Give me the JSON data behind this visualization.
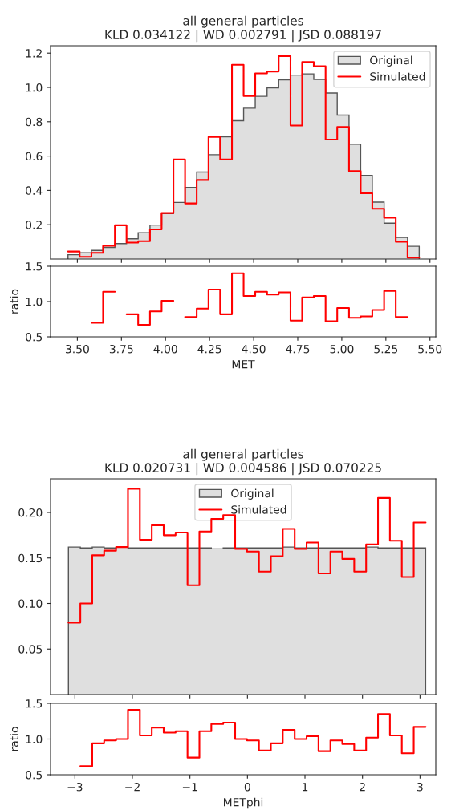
{
  "chart_data": [
    {
      "type": "histogram",
      "title": "all general particles\nKLD 0.034122 | WD 0.002791 | JSD 0.088197",
      "bins": [
        3.447,
        3.513,
        3.58,
        3.646,
        3.713,
        3.779,
        3.845,
        3.912,
        3.978,
        4.045,
        4.111,
        4.177,
        4.244,
        4.31,
        4.377,
        4.443,
        4.509,
        4.576,
        4.642,
        4.709,
        4.775,
        4.841,
        4.908,
        4.974,
        5.041,
        5.107,
        5.173,
        5.24,
        5.306,
        5.373,
        5.439
      ],
      "series": [
        {
          "name": "Original",
          "type": "histogram",
          "color": "#dfdfdf",
          "values": [
            0.025,
            0.036,
            0.05,
            0.068,
            0.09,
            0.118,
            0.153,
            0.198,
            0.265,
            0.33,
            0.417,
            0.507,
            0.608,
            0.712,
            0.806,
            0.879,
            0.948,
            0.997,
            1.044,
            1.072,
            1.079,
            1.046,
            0.967,
            0.839,
            0.669,
            0.487,
            0.332,
            0.209,
            0.126,
            0.074
          ]
        },
        {
          "name": "Simulated",
          "type": "step",
          "color": "#ff0000",
          "x": [
            3.447,
            3.513,
            3.58,
            3.646,
            3.713,
            3.779,
            3.845,
            3.912,
            3.978,
            4.045,
            4.111,
            4.177,
            4.244,
            4.31,
            4.377,
            4.443,
            4.509,
            4.576,
            4.642,
            4.709,
            4.775,
            4.841,
            4.908,
            4.974,
            5.041,
            5.107,
            5.173,
            5.24,
            5.306,
            5.373,
            5.439
          ],
          "values": [
            0.044,
            0.013,
            0.036,
            0.077,
            0.197,
            0.096,
            0.104,
            0.173,
            0.268,
            0.58,
            0.324,
            0.461,
            0.712,
            0.581,
            1.132,
            0.95,
            1.082,
            1.093,
            1.183,
            0.778,
            1.148,
            1.124,
            0.696,
            0.77,
            0.513,
            0.383,
            0.293,
            0.241,
            0.101,
            0.008,
            0.008
          ]
        }
      ],
      "xlim": [
        3.348,
        5.533
      ],
      "xticks": [
        3.5,
        3.75,
        4.0,
        4.25,
        4.5,
        4.75,
        5.0,
        5.25,
        5.5
      ],
      "ylim": [
        0,
        1.243
      ],
      "yticks": [
        0.2,
        0.4,
        0.6,
        0.8,
        {
          "value": 1,
          "label": "1.0"
        },
        1.2
      ],
      "tick_labels": "y",
      "legend": "top right"
    },
    {
      "type": "step",
      "xlabel": "MET",
      "ylabel": "ratio",
      "series": [
        {
          "type": "step",
          "color": "#ff0000",
          "x": [
            3.58,
            3.646,
            3.713,
            3.779,
            3.845,
            3.912,
            3.978,
            4.045,
            4.111,
            4.177,
            4.244,
            4.31,
            4.377,
            4.443,
            4.509,
            4.576,
            4.642,
            4.709,
            4.775,
            4.841,
            4.908,
            4.974,
            5.041,
            5.107,
            5.173,
            5.24,
            5.306,
            5.373
          ],
          "values": [
            0.7,
            1.14,
            null,
            0.82,
            0.67,
            0.86,
            1.01,
            null,
            0.78,
            0.9,
            1.17,
            0.82,
            1.4,
            1.08,
            1.14,
            1.1,
            1.13,
            0.73,
            1.06,
            1.08,
            0.72,
            0.91,
            0.77,
            0.79,
            0.88,
            1.15,
            0.78,
            0.78
          ]
        }
      ],
      "xlim": [
        3.348,
        5.533
      ],
      "xticks": [
        {
          "value": 3.5,
          "label": "3.50"
        },
        {
          "value": 3.75,
          "label": "3.75"
        },
        {
          "value": 4.0,
          "label": "4.00"
        },
        {
          "value": 4.25,
          "label": "4.25"
        },
        {
          "value": 4.5,
          "label": "4.50"
        },
        {
          "value": 4.75,
          "label": "4.75"
        },
        {
          "value": 5.0,
          "label": "5.00"
        },
        {
          "value": 5.25,
          "label": "5.25"
        },
        {
          "value": 5.5,
          "label": "5.50"
        }
      ],
      "ylim": [
        0.5,
        1.5
      ],
      "yticks": [
        0.5,
        {
          "value": 1,
          "label": "1.0"
        },
        1.5
      ]
    },
    {
      "type": "histogram",
      "title": "all general particles\nKLD 0.020731 | WD 0.004586 | JSD 0.070225",
      "bins": [
        -3.112,
        -2.905,
        -2.698,
        -2.491,
        -2.284,
        -2.077,
        -1.87,
        -1.663,
        -1.456,
        -1.249,
        -1.042,
        -0.835,
        -0.628,
        -0.421,
        -0.214,
        -0.007,
        0.2,
        0.407,
        0.614,
        0.821,
        1.028,
        1.235,
        1.442,
        1.649,
        1.856,
        2.063,
        2.27,
        2.477,
        2.684,
        2.891,
        3.098
      ],
      "series": [
        {
          "name": "Original",
          "type": "histogram",
          "color": "#dfdfdf",
          "values": [
            0.162,
            0.161,
            0.162,
            0.161,
            0.162,
            0.161,
            0.161,
            0.161,
            0.161,
            0.161,
            0.161,
            0.161,
            0.16,
            0.161,
            0.161,
            0.161,
            0.161,
            0.161,
            0.162,
            0.161,
            0.161,
            0.161,
            0.161,
            0.161,
            0.161,
            0.162,
            0.161,
            0.161,
            0.161,
            0.161
          ]
        },
        {
          "name": "Simulated",
          "type": "step",
          "color": "#ff0000",
          "x": [
            -3.112,
            -2.905,
            -2.698,
            -2.491,
            -2.284,
            -2.077,
            -1.87,
            -1.663,
            -1.456,
            -1.249,
            -1.042,
            -0.835,
            -0.628,
            -0.421,
            -0.214,
            -0.007,
            0.2,
            0.407,
            0.614,
            0.821,
            1.028,
            1.235,
            1.442,
            1.649,
            1.856,
            2.063,
            2.27,
            2.477,
            2.684,
            2.891,
            3.098
          ],
          "values": [
            0.079,
            0.1,
            0.153,
            0.158,
            0.162,
            0.226,
            0.17,
            0.186,
            0.175,
            0.178,
            0.12,
            0.179,
            0.193,
            0.197,
            0.16,
            0.157,
            0.135,
            0.152,
            0.182,
            0.16,
            0.167,
            0.133,
            0.157,
            0.149,
            0.135,
            0.165,
            0.216,
            0.169,
            0.129,
            0.189,
            0.189
          ]
        }
      ],
      "xlim": [
        -3.423,
        3.274
      ],
      "xticks": [
        -3,
        -2,
        -1,
        0,
        1,
        2,
        3
      ],
      "ylim": [
        0,
        0.237
      ],
      "yticks": [
        0.05,
        {
          "value": 0.1,
          "label": "0.10"
        },
        0.15,
        {
          "value": 0.2,
          "label": "0.20"
        }
      ],
      "tick_labels": "y",
      "legend": "top"
    },
    {
      "type": "step",
      "xlabel": "METphi",
      "ylabel": "ratio",
      "series": [
        {
          "type": "step",
          "color": "#ff0000",
          "x": [
            -2.905,
            -2.698,
            -2.491,
            -2.284,
            -2.077,
            -1.87,
            -1.663,
            -1.456,
            -1.249,
            -1.042,
            -0.835,
            -0.628,
            -0.421,
            -0.214,
            -0.007,
            0.2,
            0.407,
            0.614,
            0.821,
            1.028,
            1.235,
            1.442,
            1.649,
            1.856,
            2.063,
            2.27,
            2.477,
            2.684,
            2.891,
            3.098
          ],
          "values": [
            0.62,
            0.94,
            0.98,
            1.0,
            1.41,
            1.05,
            1.16,
            1.09,
            1.11,
            0.74,
            1.11,
            1.21,
            1.23,
            1.0,
            0.98,
            0.84,
            0.94,
            1.13,
            1.0,
            1.04,
            0.83,
            0.98,
            0.93,
            0.84,
            1.02,
            1.35,
            1.05,
            0.8,
            1.17,
            1.17
          ]
        }
      ],
      "xlim": [
        -3.423,
        3.274
      ],
      "xticks": [
        {
          "value": -3,
          "label": "−3"
        },
        {
          "value": -2,
          "label": "−2"
        },
        {
          "value": -1,
          "label": "−1"
        },
        0,
        1,
        2,
        3
      ],
      "ylim": [
        0.5,
        1.5
      ],
      "yticks": [
        0.5,
        {
          "value": 1,
          "label": "1.0"
        },
        1.5
      ]
    }
  ]
}
